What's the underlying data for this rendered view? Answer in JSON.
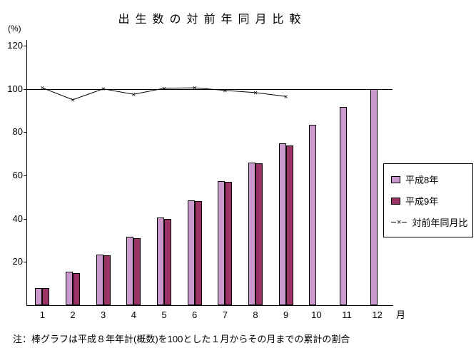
{
  "chart_data": {
    "type": "bar",
    "title": "出生数の対前年同月比較",
    "y_unit_label": "(%)",
    "x_unit_label": "月",
    "categories": [
      1,
      2,
      3,
      4,
      5,
      6,
      7,
      8,
      9,
      10,
      11,
      12
    ],
    "ylim": [
      0,
      120
    ],
    "yticks": [
      20,
      40,
      60,
      80,
      100,
      120
    ],
    "ref_line": 100,
    "grid": "off",
    "legend_position": "right",
    "series": [
      {
        "name": "平成8年",
        "type": "bar",
        "color": "#CC99CC",
        "values": [
          8,
          15.5,
          23.5,
          31.5,
          40.5,
          48.5,
          57.5,
          66,
          75,
          83.5,
          91.5,
          100
        ]
      },
      {
        "name": "平成9年",
        "type": "bar",
        "color": "#993366",
        "values": [
          8,
          15,
          23,
          31,
          40,
          48,
          57,
          65.5,
          74,
          null,
          null,
          null
        ]
      },
      {
        "name": "対前年同月比",
        "type": "line",
        "color": "#000000",
        "marker": "×",
        "values": [
          100.5,
          95,
          100,
          97.5,
          100.3,
          100.5,
          99.3,
          98.3,
          96.5,
          null,
          null,
          null
        ]
      }
    ],
    "note": "注：棒グラフは平成８年年計(概数)を100とした１月からその月までの累計の割合"
  }
}
